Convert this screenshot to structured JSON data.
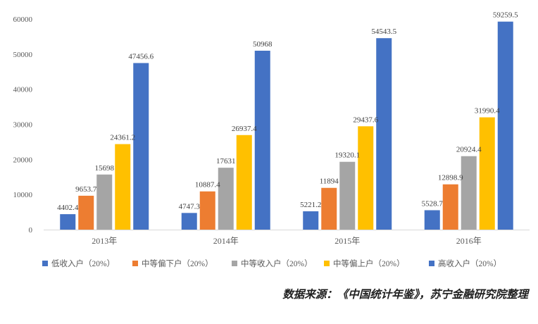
{
  "chart_data": {
    "type": "bar",
    "categories": [
      "2013年",
      "2014年",
      "2015年",
      "2016年"
    ],
    "series": [
      {
        "name": "低收入户（20%）",
        "color": "#4472c4",
        "values": [
          4402.4,
          4747.3,
          5221.2,
          5528.7
        ],
        "labels": [
          "4402.4",
          "4747.3",
          "5221.2",
          "5528.7"
        ]
      },
      {
        "name": "中等偏下户（20%）",
        "color": "#ed7d31",
        "values": [
          9653.7,
          10887.4,
          11894,
          12898.9
        ],
        "labels": [
          "9653.7",
          "10887.4",
          "11894",
          "12898.9"
        ]
      },
      {
        "name": "中等收入户（20%）",
        "color": "#a5a5a5",
        "values": [
          15698,
          17631,
          19320.1,
          20924.4
        ],
        "labels": [
          "15698",
          "17631",
          "19320.1",
          "20924.4"
        ]
      },
      {
        "name": "中等偏上户（20%）",
        "color": "#ffc000",
        "values": [
          24361.2,
          26937.4,
          29437.6,
          31990.4
        ],
        "labels": [
          "24361.2",
          "26937.4",
          "29437.6",
          "31990.4"
        ]
      },
      {
        "name": "高收入户（20%）",
        "color": "#4472c4",
        "values": [
          47456.6,
          50968,
          54543.5,
          59259.5
        ],
        "labels": [
          "47456.6",
          "50968",
          "54543.5",
          "59259.5"
        ]
      }
    ],
    "yticks": [
      "0",
      "10000",
      "20000",
      "30000",
      "40000",
      "50000",
      "60000"
    ],
    "ylim": [
      0,
      60000
    ],
    "grid": false,
    "legend_position": "bottom"
  },
  "source_note": "数据来源：《中国统计年鉴》，苏宁金融研究院整理"
}
